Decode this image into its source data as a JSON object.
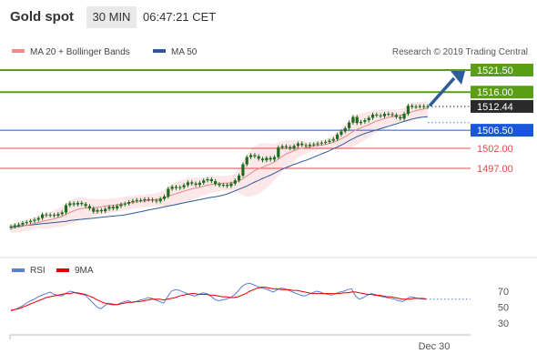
{
  "header": {
    "title": "Gold spot",
    "timeframe": "30 MIN",
    "time": "06:47:21 CET"
  },
  "legend": {
    "ma20_bb": "MA 20 + Bollinger Bands",
    "ma50": "MA 50",
    "copyright": "Research © 2019 Trading Central"
  },
  "colors": {
    "resistance": "#5a9e16",
    "pivot": "#1a56db",
    "support": "#e34a4a",
    "ma20": "#e88a8a",
    "bb_fill": "#fbe0e2",
    "ma50": "#2e5a9a",
    "candle": "#1d6b1d",
    "current": "#2a2a2a",
    "rsi": "#5b7fd4",
    "rsi_ma": "#e00000",
    "arrow": "#2d5b9b"
  },
  "chart_data": [
    {
      "type": "line",
      "name": "price",
      "ylim": [
        1481.3,
        1527.5
      ],
      "x_label": "Dec 30",
      "levels": [
        {
          "value": 1521.5,
          "label": "1521.50",
          "kind": "resistance"
        },
        {
          "value": 1516.0,
          "label": "1516.00",
          "kind": "resistance"
        },
        {
          "value": 1512.44,
          "label": "1512.44",
          "kind": "current"
        },
        {
          "value": 1506.5,
          "label": "1506.50",
          "kind": "pivot"
        },
        {
          "value": 1502.0,
          "label": "1502.00",
          "kind": "support"
        },
        {
          "value": 1497.0,
          "label": "1497.00",
          "kind": "support"
        }
      ],
      "close": [
        1482.5,
        1482.8,
        1483.0,
        1483.4,
        1483.6,
        1483.9,
        1484.2,
        1484.6,
        1485.5,
        1485.3,
        1485.4,
        1485.2,
        1485.6,
        1486.0,
        1487.8,
        1488.3,
        1488.0,
        1488.4,
        1488.1,
        1487.6,
        1487.0,
        1486.2,
        1486.6,
        1486.3,
        1486.9,
        1487.4,
        1487.0,
        1487.6,
        1488.0,
        1488.2,
        1488.6,
        1488.9,
        1489.1,
        1489.0,
        1489.3,
        1489.2,
        1489.0,
        1488.8,
        1489.4,
        1490.0,
        1491.9,
        1492.4,
        1492.1,
        1492.3,
        1492.8,
        1493.5,
        1493.2,
        1492.9,
        1493.4,
        1494.0,
        1494.3,
        1493.8,
        1493.1,
        1492.8,
        1492.9,
        1492.6,
        1493.2,
        1494.0,
        1495.2,
        1498.0,
        1499.8,
        1500.3,
        1500.0,
        1499.4,
        1499.0,
        1499.6,
        1499.2,
        1499.8,
        1502.2,
        1502.5,
        1502.3,
        1502.0,
        1502.6,
        1503.2,
        1502.8,
        1502.6,
        1502.9,
        1503.0,
        1503.2,
        1503.4,
        1503.6,
        1503.9,
        1504.3,
        1505.4,
        1506.2,
        1507.0,
        1508.4,
        1509.8,
        1508.3,
        1508.6,
        1509.0,
        1509.6,
        1510.4,
        1510.2,
        1510.0,
        1510.6,
        1510.5,
        1510.3,
        1509.8,
        1509.4,
        1510.6,
        1512.6,
        1512.3,
        1512.4,
        1512.5,
        1512.3,
        1512.44
      ],
      "ma20": [
        1482.0,
        1482.2,
        1482.4,
        1482.6,
        1482.8,
        1483.0,
        1483.3,
        1483.5,
        1483.8,
        1484.0,
        1484.2,
        1484.4,
        1484.7,
        1485.0,
        1485.5,
        1486.0,
        1486.4,
        1486.8,
        1487.0,
        1487.1,
        1487.1,
        1487.2,
        1487.3,
        1487.4,
        1487.6,
        1487.7,
        1487.8,
        1487.9,
        1488.1,
        1488.2,
        1488.4,
        1488.5,
        1488.7,
        1488.8,
        1488.9,
        1489.0,
        1489.1,
        1489.2,
        1489.4,
        1489.6,
        1490.0,
        1490.4,
        1490.7,
        1491.0,
        1491.3,
        1491.6,
        1491.9,
        1492.1,
        1492.3,
        1492.5,
        1492.8,
        1493.0,
        1493.1,
        1493.2,
        1493.3,
        1493.3,
        1493.4,
        1493.5,
        1493.8,
        1494.4,
        1495.1,
        1495.8,
        1496.4,
        1496.9,
        1497.3,
        1497.7,
        1498.1,
        1498.6,
        1499.3,
        1500.0,
        1500.6,
        1501.0,
        1501.4,
        1501.8,
        1502.0,
        1502.2,
        1502.4,
        1502.6,
        1502.7,
        1502.8,
        1503.0,
        1503.2,
        1503.5,
        1503.9,
        1504.4,
        1504.9,
        1505.5,
        1506.2,
        1506.7,
        1507.1,
        1507.5,
        1507.9,
        1508.4,
        1508.8,
        1509.1,
        1509.4,
        1509.7,
        1509.9,
        1510.1,
        1510.2,
        1510.4,
        1510.8,
        1511.1,
        1511.4,
        1511.6,
        1511.8,
        1512.0
      ],
      "bb_width": [
        1.2,
        1.2,
        1.3,
        1.3,
        1.4,
        1.4,
        1.5,
        1.6,
        1.8,
        2.0,
        2.1,
        2.2,
        2.3,
        2.5,
        2.8,
        3.0,
        3.0,
        2.9,
        2.8,
        2.6,
        2.4,
        2.2,
        2.0,
        1.9,
        1.8,
        1.8,
        1.8,
        1.7,
        1.7,
        1.7,
        1.7,
        1.6,
        1.6,
        1.6,
        1.6,
        1.6,
        1.6,
        1.6,
        1.8,
        2.0,
        2.5,
        2.8,
        3.0,
        3.0,
        3.0,
        3.0,
        2.8,
        2.6,
        2.4,
        2.3,
        2.2,
        2.1,
        2.0,
        1.9,
        1.8,
        1.8,
        1.9,
        2.2,
        3.0,
        4.2,
        5.2,
        5.8,
        6.2,
        6.2,
        6.0,
        5.6,
        5.0,
        4.5,
        4.2,
        3.8,
        3.4,
        3.0,
        2.6,
        2.2,
        1.8,
        1.5,
        1.3,
        1.2,
        1.2,
        1.2,
        1.3,
        1.5,
        1.8,
        2.2,
        2.6,
        3.0,
        3.4,
        3.8,
        3.8,
        3.6,
        3.4,
        3.2,
        3.0,
        2.8,
        2.4,
        2.2,
        2.0,
        1.8,
        1.6,
        1.6,
        1.8,
        2.2,
        2.2,
        2.1,
        2.0,
        1.9,
        1.8
      ],
      "ma50": [
        1482.4,
        1482.5,
        1482.6,
        1482.7,
        1482.8,
        1482.9,
        1483.0,
        1483.1,
        1483.2,
        1483.3,
        1483.4,
        1483.5,
        1483.6,
        1483.7,
        1483.8,
        1484.0,
        1484.1,
        1484.2,
        1484.3,
        1484.4,
        1484.5,
        1484.6,
        1484.7,
        1484.8,
        1484.9,
        1485.0,
        1485.1,
        1485.2,
        1485.3,
        1485.4,
        1485.6,
        1485.8,
        1486.0,
        1486.2,
        1486.4,
        1486.6,
        1486.8,
        1487.0,
        1487.2,
        1487.4,
        1487.6,
        1487.8,
        1488.0,
        1488.2,
        1488.4,
        1488.6,
        1488.8,
        1489.0,
        1489.2,
        1489.4,
        1489.6,
        1489.8,
        1489.9,
        1490.1,
        1490.3,
        1490.6,
        1491.0,
        1491.4,
        1491.8,
        1492.2,
        1492.6,
        1493.1,
        1493.6,
        1494.0,
        1494.5,
        1494.9,
        1495.3,
        1495.8,
        1496.3,
        1496.8,
        1497.2,
        1497.6,
        1498.0,
        1498.3,
        1498.7,
        1499.0,
        1499.4,
        1499.8,
        1500.2,
        1500.6,
        1501.0,
        1501.4,
        1501.9,
        1502.3,
        1502.8,
        1503.3,
        1503.9,
        1504.4,
        1504.9,
        1505.3,
        1505.7,
        1506.0,
        1506.3,
        1506.6,
        1506.9,
        1507.2,
        1507.5,
        1507.8,
        1508.1,
        1508.4,
        1508.7,
        1509.0,
        1509.3,
        1509.5,
        1509.7,
        1509.8,
        1509.9
      ]
    },
    {
      "type": "line",
      "name": "rsi",
      "legend": [
        "RSI",
        "9MA"
      ],
      "ylim": [
        20,
        85
      ],
      "yticks": [
        70,
        50,
        30
      ],
      "rsi": [
        45,
        47,
        49,
        52,
        55,
        58,
        60,
        63,
        65,
        67,
        69,
        66,
        65,
        64,
        67,
        70,
        69,
        67,
        66,
        65,
        60,
        55,
        50,
        48,
        52,
        55,
        54,
        53,
        55,
        57,
        58,
        56,
        57,
        59,
        60,
        62,
        61,
        59,
        57,
        55,
        63,
        70,
        72,
        71,
        69,
        67,
        65,
        64,
        66,
        68,
        67,
        64,
        60,
        58,
        59,
        60,
        62,
        65,
        70,
        76,
        79,
        80,
        78,
        76,
        74,
        73,
        71,
        69,
        72,
        74,
        73,
        71,
        69,
        67,
        65,
        64,
        66,
        68,
        70,
        69,
        67,
        66,
        65,
        67,
        69,
        70,
        72,
        73,
        64,
        60,
        62,
        65,
        67,
        66,
        64,
        63,
        62,
        61,
        60,
        58,
        57,
        60,
        63,
        62,
        61,
        60,
        61
      ],
      "ma9": [
        46,
        47,
        48,
        50,
        52,
        54,
        56,
        58,
        60,
        62,
        63,
        64,
        65,
        66,
        67,
        67,
        68,
        68,
        67,
        66,
        64,
        62,
        59,
        57,
        55,
        54,
        53,
        53,
        54,
        55,
        56,
        56,
        57,
        57,
        58,
        59,
        60,
        60,
        60,
        59,
        60,
        61,
        62,
        64,
        65,
        66,
        67,
        67,
        66,
        66,
        66,
        65,
        65,
        64,
        63,
        63,
        62,
        62,
        63,
        65,
        67,
        70,
        72,
        74,
        75,
        75,
        74,
        73,
        73,
        72,
        72,
        72,
        71,
        71,
        70,
        69,
        68,
        67,
        67,
        67,
        67,
        67,
        67,
        67,
        67,
        68,
        68,
        69,
        69,
        68,
        67,
        66,
        66,
        65,
        65,
        64,
        63,
        63,
        62,
        61,
        60,
        60,
        60,
        61,
        61,
        61,
        60
      ]
    }
  ]
}
